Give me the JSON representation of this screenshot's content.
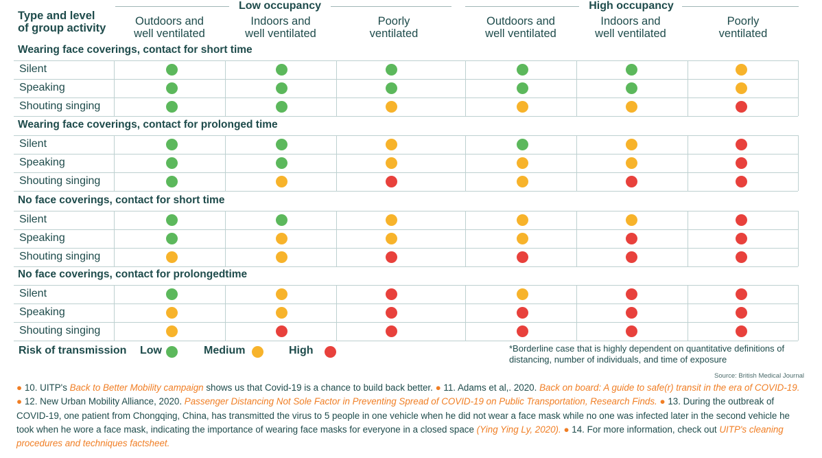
{
  "header": {
    "corner": [
      "Type and level",
      "of group activity"
    ],
    "groups": [
      "Low occupancy",
      "High occupancy"
    ],
    "columns": [
      [
        "Outdoors and",
        "well ventilated"
      ],
      [
        "Indoors and",
        "well ventilated"
      ],
      [
        "Poorly",
        "ventilated"
      ],
      [
        "Outdoors and",
        "well ventilated"
      ],
      [
        "Indoors and",
        "well ventilated"
      ],
      [
        "Poorly",
        "ventilated"
      ]
    ]
  },
  "colors": {
    "low": "#5cb85c",
    "medium": "#f7b32b",
    "high": "#e8413c",
    "text": "#1e4b4b",
    "accent": "#f07e24"
  },
  "sections": [
    {
      "title": "Wearing face coverings, contact for short time",
      "rows": [
        {
          "label": "Silent",
          "risk": [
            "low",
            "low",
            "low",
            "low",
            "low",
            "medium"
          ]
        },
        {
          "label": "Speaking",
          "risk": [
            "low",
            "low",
            "low",
            "low",
            "low",
            "medium"
          ]
        },
        {
          "label": "Shouting singing",
          "risk": [
            "low",
            "low",
            "medium",
            "medium",
            "medium",
            "high"
          ]
        }
      ]
    },
    {
      "title": "Wearing face coverings, contact for prolonged time",
      "rows": [
        {
          "label": "Silent",
          "risk": [
            "low",
            "low",
            "medium",
            "low",
            "medium",
            "high"
          ]
        },
        {
          "label": "Speaking",
          "risk": [
            "low",
            "low",
            "medium",
            "medium",
            "medium",
            "high"
          ]
        },
        {
          "label": "Shouting singing",
          "risk": [
            "low",
            "medium",
            "high",
            "medium",
            "high",
            "high"
          ]
        }
      ]
    },
    {
      "title": "No face coverings, contact for short time",
      "rows": [
        {
          "label": "Silent",
          "risk": [
            "low",
            "low",
            "medium",
            "medium",
            "medium",
            "high"
          ]
        },
        {
          "label": "Speaking",
          "risk": [
            "low",
            "medium",
            "medium",
            "medium",
            "high",
            "high"
          ]
        },
        {
          "label": "Shouting singing",
          "risk": [
            "medium",
            "medium",
            "high",
            "high",
            "high",
            "high"
          ]
        }
      ]
    },
    {
      "title": "No face coverings, contact for prolongedtime",
      "rows": [
        {
          "label": "Silent",
          "risk": [
            "low",
            "medium",
            "high",
            "medium",
            "high",
            "high"
          ]
        },
        {
          "label": "Speaking",
          "risk": [
            "medium",
            "medium",
            "high",
            "high",
            "high",
            "high"
          ]
        },
        {
          "label": "Shouting singing",
          "risk": [
            "medium",
            "high",
            "high",
            "high",
            "high",
            "high"
          ]
        }
      ]
    }
  ],
  "legend": {
    "title": "Risk of transmission",
    "items": [
      {
        "label": "Low",
        "level": "low"
      },
      {
        "label": "Medium",
        "level": "medium"
      },
      {
        "label": "High",
        "level": "high"
      }
    ]
  },
  "note": "*Borderline case that is highly dependent on quantitative definitions of distancing, number of individuals, and time of exposure",
  "source": "Source: British Medical Journal",
  "footnotes": [
    {
      "bullet": "●",
      "text": " 10. UITP's ",
      "ref": "Back to Better Mobility campaign",
      "after": " shows us that Covid-19 is a chance to build back better. "
    },
    {
      "bullet": "●",
      "text": " 11. Adams et al,. 2020. ",
      "ref": "Back on board: A guide to safe(r) transit in the era of COVID-19.",
      "after": " "
    },
    {
      "bullet": "●",
      "text": " 12.  New Urban Mobility Alliance, 2020. ",
      "ref": "Passenger Distancing Not Sole Factor in Preventing Spread of COVID-19 on Public Transportation, Research Finds.",
      "after": " "
    },
    {
      "bullet": "●",
      "text": " 13. During the outbreak of COVID-19, one patient from Chongqing, China, has transmitted the virus to 5 people in one vehicle when he did not wear a face mask while no one was infected later in the second vehicle he took when he wore a face mask, indicating the importance of wearing face masks for everyone in a closed space ",
      "ref": "(Ying Ying Ly, 2020).",
      "after": " "
    },
    {
      "bullet": "●",
      "text": " 14. For more information, check out ",
      "ref": "UITP's cleaning procedures and techniques factsheet.",
      "after": ""
    }
  ]
}
